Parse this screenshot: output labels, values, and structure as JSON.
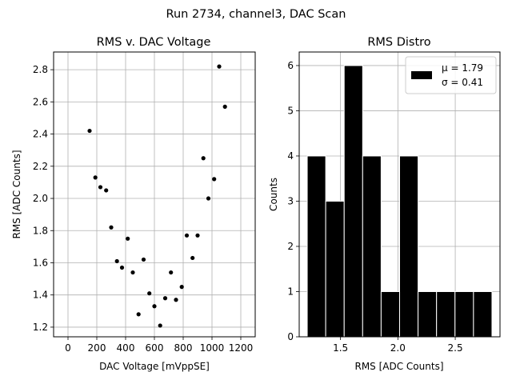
{
  "figure": {
    "suptitle": "Run 2734, channel3, DAC Scan"
  },
  "chart_data": [
    {
      "type": "scatter",
      "title": "RMS v. DAC Voltage",
      "xlabel": "DAC Voltage [mVppSE]",
      "ylabel": "RMS [ADC Counts]",
      "xlim": [
        -100,
        1300
      ],
      "ylim": [
        1.14,
        2.91
      ],
      "xticks": [
        0,
        200,
        400,
        600,
        800,
        1000,
        1200
      ],
      "yticks": [
        1.2,
        1.4,
        1.6,
        1.8,
        2.0,
        2.2,
        2.4,
        2.6,
        2.8
      ],
      "grid": true,
      "marker_color": "#000000",
      "points": [
        {
          "x": 150,
          "y": 2.42
        },
        {
          "x": 190,
          "y": 2.13
        },
        {
          "x": 225,
          "y": 2.07
        },
        {
          "x": 265,
          "y": 2.05
        },
        {
          "x": 300,
          "y": 1.82
        },
        {
          "x": 340,
          "y": 1.61
        },
        {
          "x": 375,
          "y": 1.57
        },
        {
          "x": 415,
          "y": 1.75
        },
        {
          "x": 450,
          "y": 1.54
        },
        {
          "x": 490,
          "y": 1.28
        },
        {
          "x": 525,
          "y": 1.62
        },
        {
          "x": 565,
          "y": 1.41
        },
        {
          "x": 600,
          "y": 1.33
        },
        {
          "x": 640,
          "y": 1.21
        },
        {
          "x": 675,
          "y": 1.38
        },
        {
          "x": 715,
          "y": 1.54
        },
        {
          "x": 750,
          "y": 1.37
        },
        {
          "x": 790,
          "y": 1.45
        },
        {
          "x": 825,
          "y": 1.77
        },
        {
          "x": 865,
          "y": 1.63
        },
        {
          "x": 900,
          "y": 1.77
        },
        {
          "x": 940,
          "y": 2.25
        },
        {
          "x": 975,
          "y": 2.0
        },
        {
          "x": 1015,
          "y": 2.12
        },
        {
          "x": 1050,
          "y": 2.82
        },
        {
          "x": 1090,
          "y": 2.57
        }
      ]
    },
    {
      "type": "bar",
      "title": "RMS Distro",
      "xlabel": "RMS [ADC Counts]",
      "ylabel": "Counts",
      "xlim": [
        1.14,
        2.89
      ],
      "ylim": [
        0,
        6.3
      ],
      "xticks": [
        1.5,
        2.0,
        2.5
      ],
      "xtick_labels": [
        "1.5",
        "2.0",
        "2.5"
      ],
      "yticks": [
        0,
        1,
        2,
        3,
        4,
        5,
        6
      ],
      "grid": true,
      "bar_color": "#000000",
      "edge_color": "#ffffff",
      "bin_edges": [
        1.21,
        1.371,
        1.532,
        1.693,
        1.854,
        2.015,
        2.176,
        2.337,
        2.498,
        2.659,
        2.82
      ],
      "counts": [
        4,
        3,
        6,
        4,
        1,
        4,
        1,
        1,
        1,
        1
      ],
      "legend": {
        "placement": "top-right",
        "lines": [
          "μ = 1.79",
          "σ = 0.41"
        ]
      }
    }
  ]
}
